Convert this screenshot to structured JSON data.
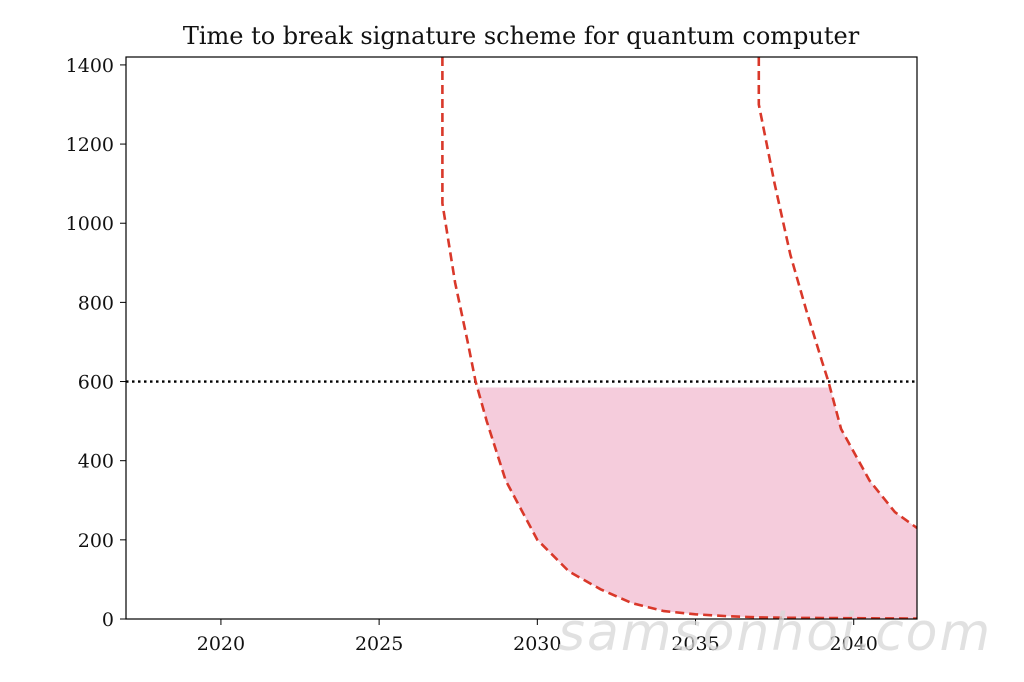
{
  "chart_data": {
    "type": "line",
    "title": "Time to break signature scheme for quantum computer",
    "xlabel": "",
    "ylabel": "",
    "xlim": [
      2017,
      2042
    ],
    "ylim": [
      0,
      1420
    ],
    "xticks": [
      2020,
      2025,
      2030,
      2035,
      2040
    ],
    "yticks": [
      0,
      200,
      400,
      600,
      800,
      1000,
      1200,
      1400
    ],
    "grid": false,
    "legend": "none",
    "threshold": {
      "y": 600,
      "style": "dotted",
      "color": "#000000"
    },
    "series": [
      {
        "style": "dashed",
        "color": "#d9382a",
        "points": [
          [
            2027.0,
            1420
          ],
          [
            2027.0,
            1050
          ],
          [
            2027.4,
            850
          ],
          [
            2027.8,
            700
          ],
          [
            2028.05,
            600
          ],
          [
            2028.4,
            500
          ],
          [
            2029.0,
            350
          ],
          [
            2030.0,
            200
          ],
          [
            2031.0,
            120
          ],
          [
            2032.0,
            75
          ],
          [
            2033.0,
            40
          ],
          [
            2034.0,
            20
          ],
          [
            2035.0,
            12
          ],
          [
            2036.0,
            7
          ],
          [
            2037.0,
            4
          ],
          [
            2038.0,
            3
          ],
          [
            2040.0,
            2
          ],
          [
            2042.0,
            1
          ]
        ]
      },
      {
        "style": "dashed",
        "color": "#d9382a",
        "points": [
          [
            2037.0,
            1420
          ],
          [
            2037.0,
            1300
          ],
          [
            2037.5,
            1100
          ],
          [
            2038.0,
            920
          ],
          [
            2038.5,
            780
          ],
          [
            2039.0,
            650
          ],
          [
            2039.2,
            600
          ],
          [
            2039.6,
            480
          ],
          [
            2040.5,
            350
          ],
          [
            2041.3,
            270
          ],
          [
            2042.0,
            230
          ]
        ]
      }
    ],
    "shaded_region": {
      "color": "#f5ccdc",
      "y_top": 585,
      "upper_bound": "series 2",
      "lower_bound": "series 1"
    }
  },
  "watermark": "samsonhoi.com"
}
